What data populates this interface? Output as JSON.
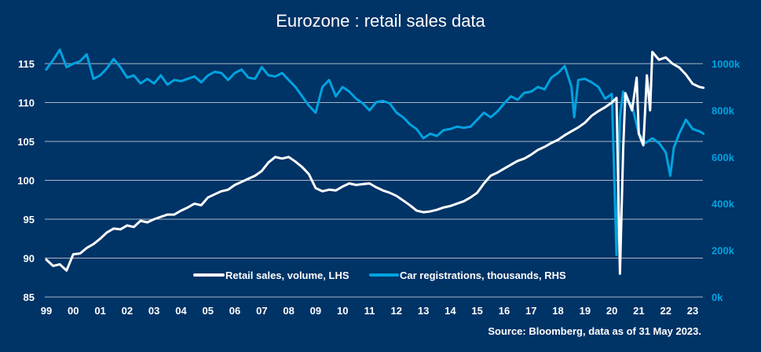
{
  "chart_data": {
    "type": "line",
    "title": "Eurozone : retail sales data",
    "source": "Source: Bloomberg, data as of 31 May 2023.",
    "xlabel": "",
    "ylabel_left": "",
    "ylabel_right": "",
    "x_range": [
      1999.0,
      2023.4
    ],
    "x_ticks": [
      {
        "value": 1999,
        "label": "99"
      },
      {
        "value": 2000,
        "label": "00"
      },
      {
        "value": 2001,
        "label": "01"
      },
      {
        "value": 2002,
        "label": "02"
      },
      {
        "value": 2003,
        "label": "03"
      },
      {
        "value": 2004,
        "label": "04"
      },
      {
        "value": 2005,
        "label": "05"
      },
      {
        "value": 2006,
        "label": "06"
      },
      {
        "value": 2007,
        "label": "07"
      },
      {
        "value": 2008,
        "label": "08"
      },
      {
        "value": 2009,
        "label": "09"
      },
      {
        "value": 2010,
        "label": "10"
      },
      {
        "value": 2011,
        "label": "11"
      },
      {
        "value": 2012,
        "label": "12"
      },
      {
        "value": 2013,
        "label": "13"
      },
      {
        "value": 2014,
        "label": "14"
      },
      {
        "value": 2015,
        "label": "15"
      },
      {
        "value": 2016,
        "label": "16"
      },
      {
        "value": 2017,
        "label": "17"
      },
      {
        "value": 2018,
        "label": "18"
      },
      {
        "value": 2019,
        "label": "19"
      },
      {
        "value": 2020,
        "label": "20"
      },
      {
        "value": 2021,
        "label": "21"
      },
      {
        "value": 2022,
        "label": "22"
      },
      {
        "value": 2023,
        "label": "23"
      }
    ],
    "y_left": {
      "range": [
        85,
        115
      ],
      "ticks": [
        {
          "value": 85,
          "label": "85"
        },
        {
          "value": 90,
          "label": "90"
        },
        {
          "value": 95,
          "label": "95"
        },
        {
          "value": 100,
          "label": "100"
        },
        {
          "value": 105,
          "label": "105"
        },
        {
          "value": 110,
          "label": "110"
        },
        {
          "value": 115,
          "label": "115"
        }
      ]
    },
    "y_right": {
      "range": [
        0,
        1000
      ],
      "ticks": [
        {
          "value": 0,
          "label": "0k"
        },
        {
          "value": 200,
          "label": "200k"
        },
        {
          "value": 400,
          "label": "400k"
        },
        {
          "value": 600,
          "label": "600k"
        },
        {
          "value": 800,
          "label": "800k"
        },
        {
          "value": 1000,
          "label": "1000k"
        }
      ]
    },
    "grid": true,
    "legend_position": "bottom-center",
    "series": [
      {
        "name": "Retail sales, volume, LHS",
        "axis": "left",
        "color": "#ffffff",
        "x": [
          1999.0,
          1999.25,
          1999.5,
          1999.75,
          2000.0,
          2000.25,
          2000.5,
          2000.75,
          2001.0,
          2001.25,
          2001.5,
          2001.75,
          2002.0,
          2002.25,
          2002.5,
          2002.75,
          2003.0,
          2003.25,
          2003.5,
          2003.75,
          2004.0,
          2004.25,
          2004.5,
          2004.75,
          2005.0,
          2005.25,
          2005.5,
          2005.75,
          2006.0,
          2006.25,
          2006.5,
          2006.75,
          2007.0,
          2007.25,
          2007.5,
          2007.75,
          2008.0,
          2008.25,
          2008.5,
          2008.75,
          2009.0,
          2009.25,
          2009.5,
          2009.75,
          2010.0,
          2010.25,
          2010.5,
          2010.75,
          2011.0,
          2011.25,
          2011.5,
          2011.75,
          2012.0,
          2012.25,
          2012.5,
          2012.75,
          2013.0,
          2013.25,
          2013.5,
          2013.75,
          2014.0,
          2014.25,
          2014.5,
          2014.75,
          2015.0,
          2015.25,
          2015.5,
          2015.75,
          2016.0,
          2016.25,
          2016.5,
          2016.75,
          2017.0,
          2017.25,
          2017.5,
          2017.75,
          2018.0,
          2018.25,
          2018.5,
          2018.75,
          2019.0,
          2019.25,
          2019.5,
          2019.75,
          2020.0,
          2020.17,
          2020.3,
          2020.42,
          2020.5,
          2020.75,
          2020.92,
          2021.0,
          2021.17,
          2021.3,
          2021.42,
          2021.5,
          2021.75,
          2022.0,
          2022.25,
          2022.5,
          2022.75,
          2023.0,
          2023.25,
          2023.4
        ],
        "values": [
          89.8,
          89.0,
          89.2,
          88.4,
          90.5,
          90.6,
          91.3,
          91.8,
          92.5,
          93.3,
          93.8,
          93.7,
          94.2,
          94.0,
          94.8,
          94.6,
          95.0,
          95.3,
          95.6,
          95.6,
          96.1,
          96.5,
          97.0,
          96.8,
          97.8,
          98.2,
          98.6,
          98.8,
          99.4,
          99.8,
          100.2,
          100.6,
          101.2,
          102.3,
          103.0,
          102.8,
          103.0,
          102.4,
          101.7,
          100.8,
          99.0,
          98.6,
          98.8,
          98.7,
          99.2,
          99.6,
          99.4,
          99.5,
          99.6,
          99.1,
          98.7,
          98.4,
          98.0,
          97.4,
          96.8,
          96.1,
          95.9,
          96.0,
          96.2,
          96.5,
          96.7,
          97.0,
          97.3,
          97.8,
          98.4,
          99.6,
          100.6,
          101.0,
          101.5,
          102.0,
          102.5,
          102.8,
          103.3,
          103.9,
          104.3,
          104.8,
          105.2,
          105.8,
          106.3,
          106.8,
          107.4,
          108.3,
          108.9,
          109.4,
          110.0,
          110.6,
          88.0,
          104.0,
          111.2,
          109.0,
          113.2,
          106.0,
          104.5,
          113.5,
          109.0,
          116.5,
          115.5,
          115.8,
          115.0,
          114.5,
          113.6,
          112.4,
          112.0,
          111.9
        ]
      },
      {
        "name": "Car registrations, thousands, RHS",
        "axis": "right",
        "color": "#00a3e0",
        "x": [
          1999.0,
          1999.25,
          1999.5,
          1999.75,
          2000.0,
          2000.25,
          2000.5,
          2000.75,
          2001.0,
          2001.25,
          2001.5,
          2001.75,
          2002.0,
          2002.25,
          2002.5,
          2002.75,
          2003.0,
          2003.25,
          2003.5,
          2003.75,
          2004.0,
          2004.25,
          2004.5,
          2004.75,
          2005.0,
          2005.25,
          2005.5,
          2005.75,
          2006.0,
          2006.25,
          2006.5,
          2006.75,
          2007.0,
          2007.25,
          2007.5,
          2007.75,
          2008.0,
          2008.25,
          2008.5,
          2008.75,
          2009.0,
          2009.25,
          2009.5,
          2009.75,
          2010.0,
          2010.25,
          2010.5,
          2010.75,
          2011.0,
          2011.25,
          2011.5,
          2011.75,
          2012.0,
          2012.25,
          2012.5,
          2012.75,
          2013.0,
          2013.25,
          2013.5,
          2013.75,
          2014.0,
          2014.25,
          2014.5,
          2014.75,
          2015.0,
          2015.25,
          2015.5,
          2015.75,
          2016.0,
          2016.25,
          2016.5,
          2016.75,
          2017.0,
          2017.25,
          2017.5,
          2017.75,
          2018.0,
          2018.25,
          2018.5,
          2018.6,
          2018.75,
          2019.0,
          2019.25,
          2019.5,
          2019.75,
          2020.0,
          2020.17,
          2020.3,
          2020.42,
          2020.5,
          2020.75,
          2021.0,
          2021.25,
          2021.5,
          2021.75,
          2022.0,
          2022.17,
          2022.3,
          2022.5,
          2022.75,
          2023.0,
          2023.25,
          2023.4
        ],
        "values": [
          975,
          1015,
          1060,
          985,
          1000,
          1010,
          1040,
          935,
          950,
          980,
          1020,
          985,
          940,
          950,
          915,
          935,
          915,
          950,
          910,
          930,
          925,
          935,
          945,
          920,
          950,
          965,
          960,
          930,
          960,
          975,
          940,
          935,
          985,
          950,
          945,
          960,
          930,
          900,
          860,
          820,
          790,
          900,
          930,
          860,
          900,
          880,
          850,
          830,
          800,
          835,
          840,
          830,
          790,
          770,
          740,
          720,
          680,
          700,
          690,
          715,
          720,
          730,
          725,
          730,
          760,
          790,
          770,
          795,
          830,
          860,
          845,
          875,
          880,
          900,
          890,
          940,
          960,
          990,
          900,
          770,
          930,
          935,
          920,
          900,
          850,
          870,
          180,
          770,
          880,
          850,
          820,
          700,
          660,
          680,
          660,
          620,
          520,
          640,
          700,
          760,
          720,
          710,
          700
        ]
      }
    ]
  }
}
